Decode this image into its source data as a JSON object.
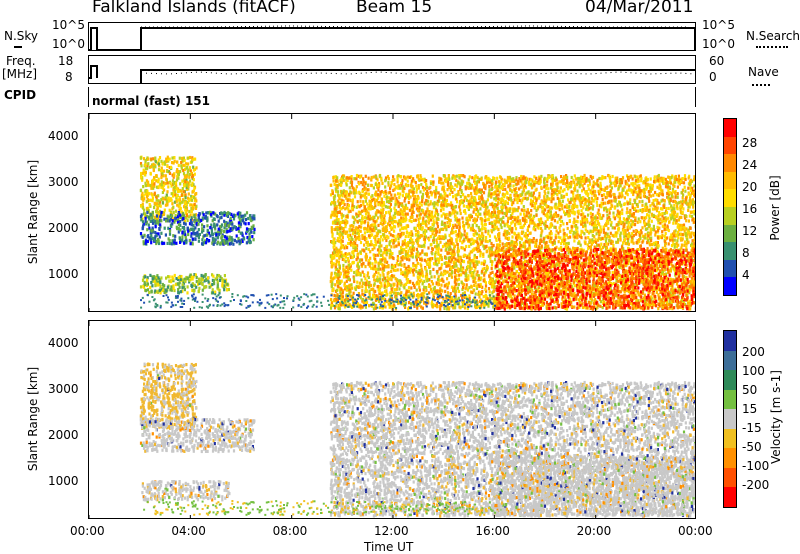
{
  "header": {
    "title": "Falkland Islands (fitACF)",
    "beam": "Beam 15",
    "date": "04/Mar/2011"
  },
  "top_panels": {
    "nsky_label": "N.Sky",
    "nsky_ticks": [
      "10^5",
      "10^0"
    ],
    "nsearch_label": "N.Search",
    "freq_label_1": "Freq.",
    "freq_label_2": "[MHz]",
    "freq_ticks": [
      "18",
      "8"
    ],
    "nave_ticks": [
      "60",
      "0"
    ],
    "nave_label": "Nave",
    "cpid_label": "CPID",
    "cpid_value": "normal (fast) 151"
  },
  "axes": {
    "ylabel": "Slant Range [km]",
    "yticks": [
      "4000",
      "3000",
      "2000",
      "1000"
    ],
    "xticks": [
      "00:00",
      "04:00",
      "08:00",
      "12:00",
      "16:00",
      "20:00",
      "00:00"
    ],
    "xlabel": "Time UT"
  },
  "colorbars": {
    "power": {
      "label": "Power [dB]",
      "ticks": [
        "28",
        "24",
        "20",
        "16",
        "12",
        "8",
        "4"
      ],
      "colors": [
        "#ff0000",
        "#ff4400",
        "#ff8800",
        "#ffbb00",
        "#ffdd00",
        "#b8d020",
        "#6cb040",
        "#389070",
        "#2050b0",
        "#0000ff"
      ]
    },
    "velocity": {
      "label": "Velocity [m s-1]",
      "ticks": [
        "200",
        "100",
        "50",
        "15",
        "-15",
        "-50",
        "-100",
        "-200"
      ],
      "colors": [
        "#2030a0",
        "#3c6e98",
        "#2e8a58",
        "#74c040",
        "#c8c8c8",
        "#f0c020",
        "#ff9000",
        "#ff5000",
        "#ff0000"
      ]
    }
  },
  "chart_data": {
    "type": "heatmap",
    "title": "Falkland Islands (fitACF) Beam 15 04/Mar/2011",
    "xlabel": "Time UT",
    "ylabel": "Slant Range [km]",
    "xlim": [
      0,
      24
    ],
    "ylim": [
      180,
      4500
    ],
    "regions": [
      {
        "name": "early-upper",
        "t": [
          2.0,
          4.2
        ],
        "r": [
          2200,
          3600
        ],
        "power": 18,
        "velocity": -50
      },
      {
        "name": "early-mid",
        "t": [
          2.0,
          6.5
        ],
        "r": [
          1700,
          2400
        ],
        "power": 6,
        "velocity": -15
      },
      {
        "name": "early-lower",
        "t": [
          2.0,
          5.5
        ],
        "r": [
          650,
          1050
        ],
        "power": 12,
        "velocity": -15
      },
      {
        "name": "main-band",
        "t": [
          9.5,
          24.0
        ],
        "r": [
          300,
          3200
        ],
        "power": 20,
        "velocity": -15
      },
      {
        "name": "late-strong",
        "t": [
          16.0,
          24.0
        ],
        "r": [
          300,
          1600
        ],
        "power": 28,
        "velocity": -15
      }
    ]
  }
}
